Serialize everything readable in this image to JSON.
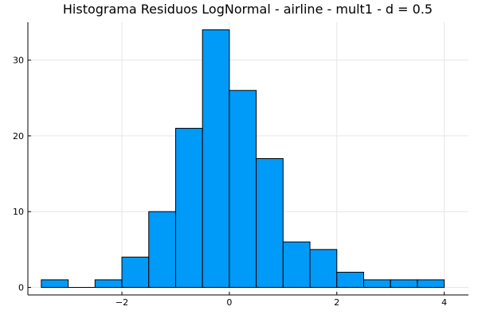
{
  "chart_data": {
    "type": "bar",
    "title": "Histograma Residuos LogNormal - airline - mult1 - d = 0.5",
    "bin_width": 0.5,
    "bins": [
      {
        "x0": -3.5,
        "x1": -3.0,
        "count": 1
      },
      {
        "x0": -3.0,
        "x1": -2.5,
        "count": 0
      },
      {
        "x0": -2.5,
        "x1": -2.0,
        "count": 1
      },
      {
        "x0": -2.0,
        "x1": -1.5,
        "count": 4
      },
      {
        "x0": -1.5,
        "x1": -1.0,
        "count": 10
      },
      {
        "x0": -1.0,
        "x1": -0.5,
        "count": 21
      },
      {
        "x0": -0.5,
        "x1": 0.0,
        "count": 34
      },
      {
        "x0": 0.0,
        "x1": 0.5,
        "count": 26
      },
      {
        "x0": 0.5,
        "x1": 1.0,
        "count": 17
      },
      {
        "x0": 1.0,
        "x1": 1.5,
        "count": 6
      },
      {
        "x0": 1.5,
        "x1": 2.0,
        "count": 5
      },
      {
        "x0": 2.0,
        "x1": 2.5,
        "count": 2
      },
      {
        "x0": 2.5,
        "x1": 3.0,
        "count": 1
      },
      {
        "x0": 3.0,
        "x1": 3.5,
        "count": 1
      },
      {
        "x0": 3.5,
        "x1": 4.0,
        "count": 1
      }
    ],
    "xticks": [
      -2,
      0,
      2,
      4
    ],
    "xtick_labels": [
      "−2",
      "0",
      "2",
      "4"
    ],
    "yticks": [
      0,
      10,
      20,
      30
    ],
    "ytick_labels": [
      "0",
      "10",
      "20",
      "30"
    ],
    "xlim": [
      -3.75,
      4.45
    ],
    "ylim": [
      -1.0,
      35.0
    ],
    "bar_color": "#009af9",
    "edge_color": "#000000",
    "grid": true,
    "legend": false
  }
}
